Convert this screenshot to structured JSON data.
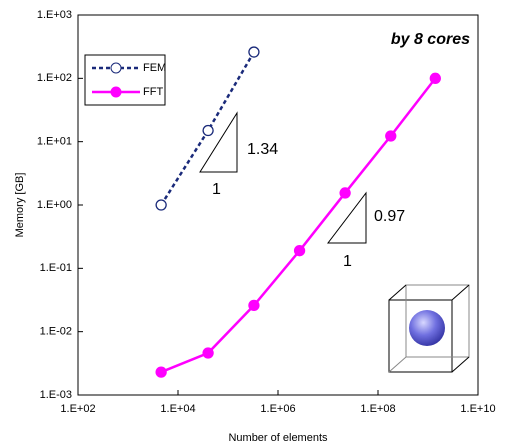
{
  "chart_data": {
    "type": "line",
    "x_label": "Number of elements",
    "y_label": "Memory  [GB]",
    "annotations": [
      "by 8 cores",
      "1.34",
      "1",
      "0.97",
      "1"
    ],
    "log_x": true,
    "log_y": true,
    "xlim": [
      100,
      10000000000
    ],
    "ylim": [
      0.001,
      1000
    ],
    "xticks": [
      {
        "value": 100,
        "label": "1.E+02"
      },
      {
        "value": 10000,
        "label": "1.E+04"
      },
      {
        "value": 1000000,
        "label": "1.E+06"
      },
      {
        "value": 100000000,
        "label": "1.E+08"
      },
      {
        "value": 10000000000,
        "label": "1.E+10"
      }
    ],
    "yticks": [
      {
        "value": 0.001,
        "label": "1.E-03"
      },
      {
        "value": 0.01,
        "label": "1.E-02"
      },
      {
        "value": 0.1,
        "label": "1.E-01"
      },
      {
        "value": 1,
        "label": "1.E+00"
      },
      {
        "value": 10,
        "label": "1.E+01"
      },
      {
        "value": 100,
        "label": "1.E+02"
      },
      {
        "value": 1000,
        "label": "1.E+03"
      }
    ],
    "legend": "upper left",
    "series": [
      {
        "name": "FEM",
        "color": "#1a2a7a",
        "dashed": true,
        "marker_filled": false,
        "x": [
          4600,
          40000,
          330000
        ],
        "values": [
          1.0,
          15,
          260
        ]
      },
      {
        "name": "FFT",
        "color": "#ff00ff",
        "dashed": false,
        "marker_filled": true,
        "x": [
          4600,
          40000,
          330000,
          2700000,
          22000000,
          180000000,
          1400000000
        ],
        "values": [
          0.0023,
          0.0046,
          0.026,
          0.19,
          1.55,
          12.3,
          100
        ]
      }
    ]
  }
}
